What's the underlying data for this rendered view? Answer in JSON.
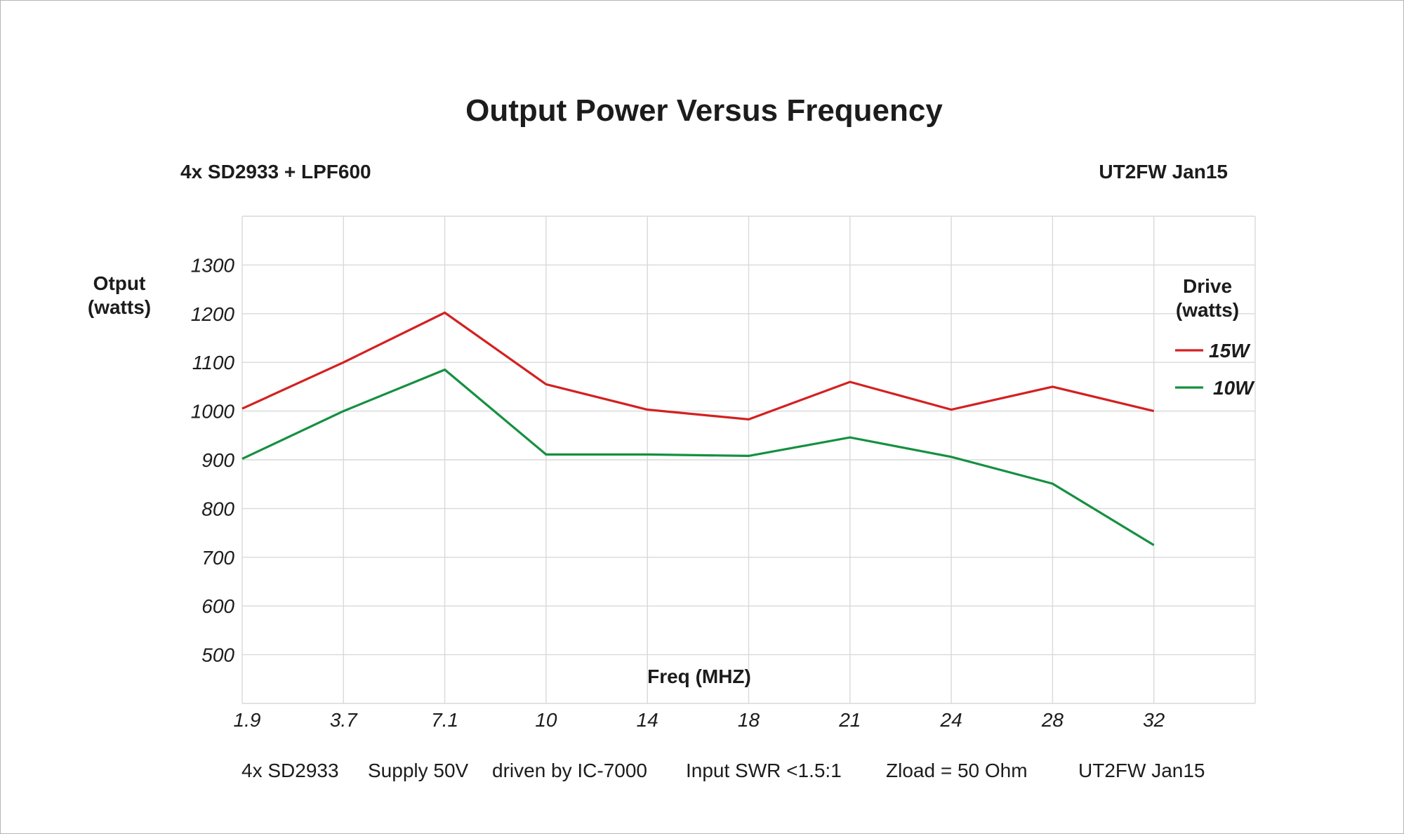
{
  "chart_data": {
    "type": "line",
    "title": "Output Power Versus Frequency",
    "subtitle_left": "4x SD2933 + LPF600",
    "subtitle_right": "UT2FW  Jan15",
    "xlabel": "Freq (MHZ)",
    "ylabel_lines": [
      "Otput",
      "(watts)"
    ],
    "categories": [
      "1.9",
      "3.7",
      "7.1",
      "10",
      "14",
      "18",
      "21",
      "24",
      "28",
      "32"
    ],
    "yticks": [
      500,
      600,
      700,
      800,
      900,
      1000,
      1100,
      1200,
      1300
    ],
    "ylim": [
      400,
      1400
    ],
    "grid": true,
    "legend": {
      "title_lines": [
        "Drive",
        "(watts)"
      ],
      "placement": "right"
    },
    "series": [
      {
        "name": "15W",
        "color": "#d42020",
        "values": [
          1005,
          1100,
          1202,
          1055,
          1003,
          983,
          1060,
          1003,
          1050,
          1000
        ]
      },
      {
        "name": "10W",
        "color": "#159040",
        "values": [
          902,
          1000,
          1085,
          911,
          911,
          908,
          946,
          906,
          851,
          725
        ]
      }
    ],
    "footer": [
      "4x SD2933",
      "Supply 50V",
      "driven by IC-7000",
      "Input  SWR <1.5:1",
      "Zload = 50 Ohm",
      "UT2FW Jan15"
    ]
  }
}
